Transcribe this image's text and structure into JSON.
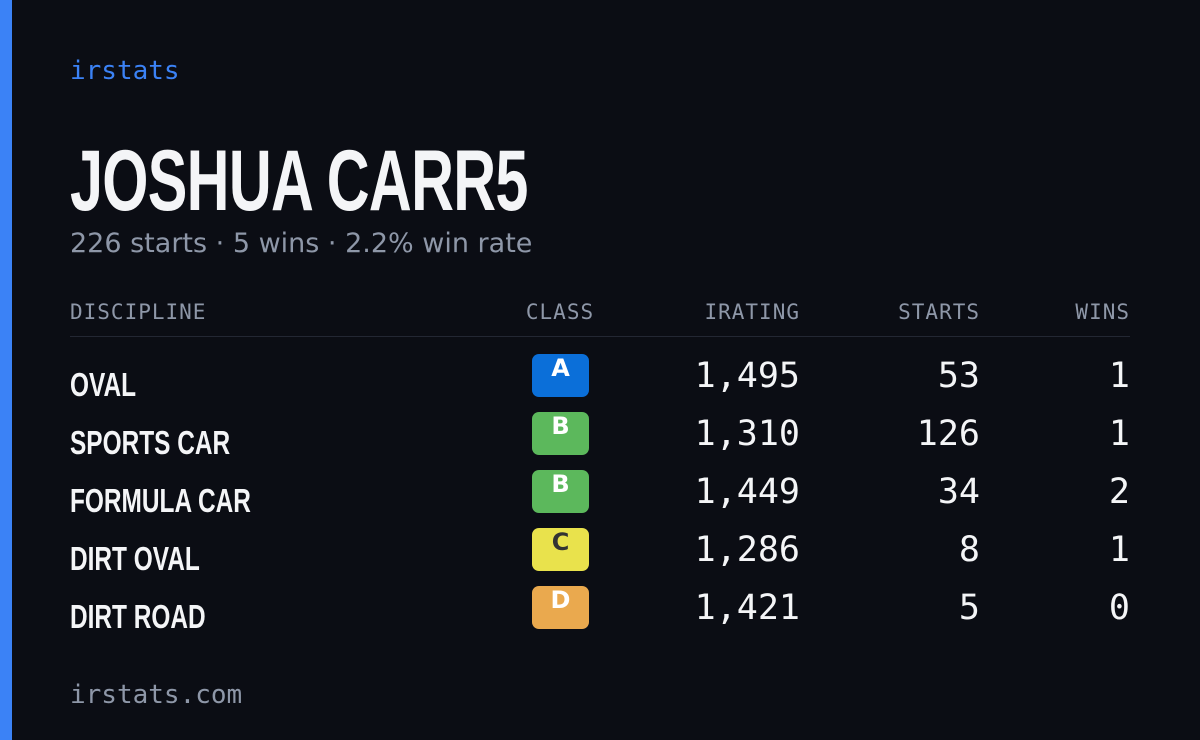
{
  "brand": "irstats",
  "header": {
    "title": "JOSHUA CARR5",
    "subtitle": "226 starts · 5 wins · 2.2% win rate"
  },
  "table": {
    "columns": [
      "DISCIPLINE",
      "CLASS",
      "IRATING",
      "STARTS",
      "WINS"
    ],
    "rows": [
      [
        "OVAL",
        "A",
        "1,495",
        "53",
        "1"
      ],
      [
        "SPORTS CAR",
        "B",
        "1,310",
        "126",
        "1"
      ],
      [
        "FORMULA CAR",
        "B",
        "1,449",
        "34",
        "2"
      ],
      [
        "DIRT OVAL",
        "C",
        "1,286",
        "8",
        "1"
      ],
      [
        "DIRT ROAD",
        "D",
        "1,421",
        "5",
        "0"
      ]
    ],
    "class_colors": {
      "A": "#0b6fd9",
      "B": "#5cb85c",
      "C": "#e9e24c",
      "D": "#eaa94e"
    }
  },
  "footer": "irstats.com"
}
